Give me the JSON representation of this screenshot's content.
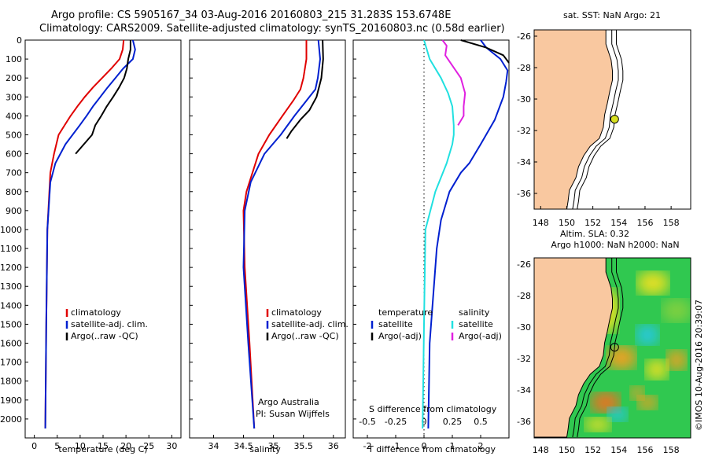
{
  "header": {
    "line1": "Argo profile: CS 5905167_34 03-Aug-2016 20160803_215 31.283S 153.6748E",
    "line2": "Climatology: CARS2009. Satellite-adjusted climatology: synTS_20160803.nc (0.58d earlier)"
  },
  "map_top": {
    "title": "sat. SST: NaN Argo: 21"
  },
  "map_bottom": {
    "title1": "Altim. SLA: 0.32",
    "title2": "Argo h1000: NaN h2000: NaN"
  },
  "copyright": "©IMOS 10-Aug-2016 20:39:07",
  "attribution": {
    "line1": "Argo Australia",
    "line2": "PI: Susan Wijffels"
  },
  "colors": {
    "climatology": "#e00000",
    "satellite": "#0020d0",
    "argo": "#000000",
    "satellite_s": "#20e0e0",
    "argo_s": "#e020e0",
    "land": "#f9c8a0"
  },
  "chart_data": [
    {
      "type": "line",
      "xlabel": "temperature (deg C)",
      "ylabel": "",
      "xlim": [
        -2,
        32
      ],
      "ylim": [
        2100,
        0
      ],
      "xticks": [
        0,
        5,
        10,
        15,
        20,
        25,
        30
      ],
      "yticks": [
        0,
        100,
        200,
        300,
        400,
        500,
        600,
        700,
        800,
        900,
        1000,
        1100,
        1200,
        1300,
        1400,
        1500,
        1600,
        1700,
        1800,
        1900,
        2000
      ],
      "legend": [
        "climatology",
        "satellite-adj. clim.",
        "Argo(..raw -QC)"
      ],
      "series": [
        {
          "name": "climatology",
          "x": [
            19.5,
            19.3,
            18.6,
            16.8,
            14.8,
            12.8,
            11.0,
            9.4,
            7.9,
            6.6,
            5.3,
            4.3,
            3.5,
            2.85,
            2.6,
            2.4
          ],
          "y": [
            0,
            50,
            100,
            150,
            200,
            250,
            300,
            350,
            400,
            450,
            500,
            600,
            700,
            1000,
            1500,
            2050
          ]
        },
        {
          "name": "satellite-adj. clim.",
          "x": [
            21.5,
            22.0,
            21.5,
            19.4,
            17.7,
            16.0,
            14.4,
            12.8,
            11.4,
            9.9,
            6.8,
            4.6,
            3.5,
            2.85,
            2.6,
            2.4
          ],
          "y": [
            0,
            50,
            100,
            150,
            200,
            250,
            300,
            350,
            400,
            450,
            550,
            650,
            750,
            1000,
            1500,
            2050
          ]
        },
        {
          "name": "Argo(..raw -QC)",
          "x": [
            21.0,
            21.0,
            20.5,
            20.2,
            19.6,
            18.5,
            17.2,
            15.8,
            14.6,
            13.3,
            12.6,
            9.0
          ],
          "y": [
            0,
            50,
            100,
            150,
            200,
            250,
            300,
            350,
            400,
            450,
            500,
            600
          ]
        }
      ]
    },
    {
      "type": "line",
      "xlabel": "salinity",
      "ylabel": "",
      "xlim": [
        33.6,
        36.2
      ],
      "ylim": [
        2100,
        0
      ],
      "xticks": [
        34,
        34.5,
        35,
        35.5,
        36
      ],
      "legend": [
        "climatology",
        "satellite-adj. clim.",
        "Argo(..raw -QC)"
      ],
      "series": [
        {
          "name": "climatology",
          "x": [
            35.55,
            35.55,
            35.5,
            35.45,
            35.33,
            35.15,
            34.93,
            34.75,
            34.55,
            34.5,
            34.52,
            34.6,
            34.68
          ],
          "y": [
            0,
            100,
            200,
            260,
            320,
            400,
            500,
            600,
            800,
            900,
            1200,
            1600,
            2050
          ]
        },
        {
          "name": "satellite-adj. clim.",
          "x": [
            35.75,
            35.78,
            35.74,
            35.7,
            35.55,
            35.35,
            35.12,
            34.85,
            34.62,
            34.52,
            34.5,
            34.58,
            34.68
          ],
          "y": [
            0,
            100,
            200,
            260,
            320,
            400,
            500,
            600,
            750,
            900,
            1200,
            1600,
            2050
          ]
        },
        {
          "name": "Argo(..raw -QC)",
          "x": [
            35.82,
            35.83,
            35.8,
            35.72,
            35.6,
            35.45,
            35.3,
            35.22
          ],
          "y": [
            0,
            100,
            200,
            300,
            370,
            420,
            480,
            520
          ]
        }
      ]
    },
    {
      "type": "line",
      "xlabel": "T difference from climatology",
      "ylabel": "",
      "title": "S difference from climatology",
      "xlim": [
        -2.5,
        3
      ],
      "ylim": [
        2100,
        0
      ],
      "xticks": [
        -2,
        -1,
        0,
        1,
        2
      ],
      "top_ticks": [
        "-0.5",
        "-0.25",
        "0",
        "0.25",
        "0.5"
      ],
      "legend_t": [
        "temperature",
        "satellite",
        "Argo(-adj)"
      ],
      "legend_s": [
        "salinity",
        "satellite",
        "Argo(-adj)"
      ],
      "series": [
        {
          "name": "satellite",
          "x": [
            2.0,
            2.2,
            2.7,
            2.95,
            2.9,
            2.8,
            2.5,
            2.0,
            1.6,
            1.3,
            0.9,
            0.6,
            0.45,
            0.2,
            0.15
          ],
          "y": [
            0,
            40,
            100,
            160,
            220,
            300,
            420,
            550,
            650,
            700,
            800,
            950,
            1100,
            1600,
            2050
          ]
        },
        {
          "name": "Argo(-adj)",
          "x": [
            1.3,
            2.2,
            2.8,
            3.0
          ],
          "y": [
            0,
            40,
            80,
            120
          ]
        },
        {
          "name": "satellite",
          "x": [
            0.0,
            0.2,
            0.6,
            0.85,
            1.0,
            1.05,
            1.05,
            1.0,
            0.8,
            0.4,
            0.05,
            0.0,
            -0.05
          ],
          "y": [
            0,
            100,
            200,
            280,
            350,
            450,
            500,
            550,
            650,
            800,
            1000,
            1500,
            2050
          ]
        },
        {
          "name": "Argo(-adj)",
          "x": [
            0.65,
            0.8,
            0.75,
            1.3,
            1.45,
            1.4,
            1.4,
            1.2
          ],
          "y": [
            0,
            30,
            80,
            200,
            280,
            350,
            400,
            450
          ]
        }
      ]
    },
    {
      "type": "scatter",
      "title": "sat. SST: NaN Argo: 21",
      "xlabel": "",
      "ylabel": "",
      "xlim": [
        147.5,
        159.5
      ],
      "ylim": [
        -37,
        -25.6
      ],
      "xticks": [
        148,
        150,
        152,
        154,
        156,
        158
      ],
      "yticks": [
        -26,
        -28,
        -30,
        -32,
        -34,
        -36
      ],
      "x": [
        153.67
      ],
      "y": [
        -31.28
      ]
    },
    {
      "type": "heatmap",
      "title": "Altim. SLA: 0.32",
      "xlabel": "",
      "ylabel": "",
      "xlim": [
        147.5,
        159.5
      ],
      "ylim": [
        -37,
        -25.6
      ],
      "xticks": [
        148,
        150,
        152,
        154,
        156,
        158
      ],
      "yticks": [
        -26,
        -28,
        -30,
        -32,
        -34,
        -36
      ],
      "x": [
        153.67
      ],
      "y": [
        -31.28
      ]
    }
  ]
}
